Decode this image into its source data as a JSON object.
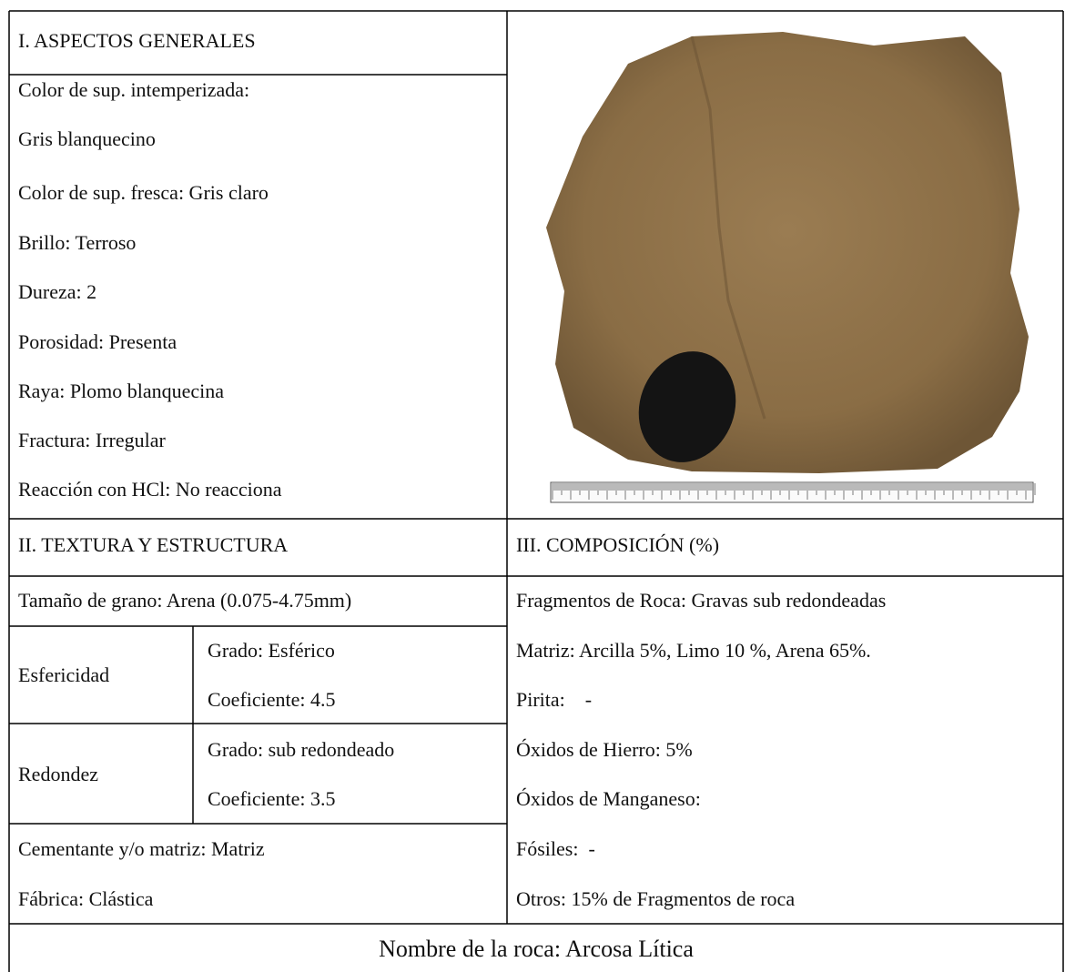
{
  "section_1": {
    "title": "I. ASPECTOS GENERALES",
    "lines": [
      "Color de sup. intemperizada:",
      "Gris blanquecino",
      "Color de sup. fresca: Gris claro",
      "Brillo: Terroso",
      "Dureza: 2",
      "Porosidad: Presenta",
      "Raya: Plomo blanquecina",
      "Fractura: Irregular",
      "Reacción con HCl: No reacciona"
    ]
  },
  "section_2": {
    "title": "II. TEXTURA Y ESTRUCTURA",
    "grain_size": "Tamaño de grano: Arena (0.075-4.75mm)",
    "sphericity": {
      "label": "Esfericidad",
      "grade": "Grado: Esférico",
      "coefficient": "Coeficiente: 4.5"
    },
    "roundness": {
      "label": "Redondez",
      "grade": "Grado: sub redondeado",
      "coefficient": "Coeficiente: 3.5"
    },
    "cement": "Cementante y/o matriz: Matriz",
    "fabric": "Fábrica: Clástica"
  },
  "section_3": {
    "title": "III. COMPOSICIÓN (%)",
    "lines": [
      "Fragmentos de Roca: Gravas sub redondeadas",
      "Matriz: Arcilla 5%, Limo 10 %, Arena 65%.",
      "Pirita:    -",
      "Óxidos de Hierro: 5%",
      "Óxidos de Manganeso:",
      "Fósiles:  -",
      "Otros: 15% de Fragmentos de roca"
    ]
  },
  "rock_name": "Nombre de la roca: Arcosa Lítica"
}
